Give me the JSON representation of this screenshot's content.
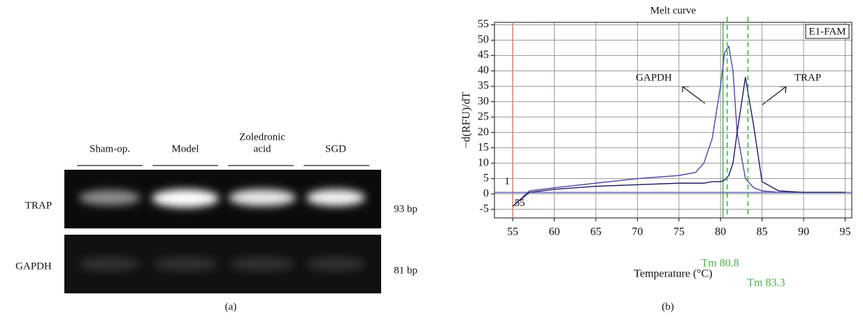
{
  "gel": {
    "lanes": [
      [
        "Sham-op."
      ],
      [
        "Model"
      ],
      [
        "Zoledronic",
        "acid"
      ],
      [
        "SGD"
      ]
    ],
    "rows": [
      "TRAP",
      "GAPDH"
    ],
    "sizes": [
      "93 bp",
      "81 bp"
    ],
    "caption": "(a)"
  },
  "chart_data": {
    "type": "line",
    "title": "Melt curve",
    "xlabel": "Temperature (°C)",
    "ylabel": "−d(RFU)/dT",
    "box_label": "E1-FAM",
    "caption": "(b)",
    "x": [
      55,
      57,
      60,
      65,
      70,
      75,
      77,
      78,
      79,
      80,
      80.5,
      81,
      81.5,
      82,
      83,
      84,
      85,
      87,
      90,
      95
    ],
    "series": [
      {
        "name": "GAPDH",
        "color": "#4a4aa8",
        "values": [
          -4,
          1,
          2,
          3.5,
          5,
          6,
          7,
          10,
          18,
          35,
          46,
          48,
          40,
          20,
          5,
          2,
          1,
          0.5,
          0.5,
          0.5
        ]
      },
      {
        "name": "TRAP",
        "color": "#1a1a60",
        "values": [
          -4,
          0.5,
          1.5,
          2.5,
          3,
          3.5,
          3.5,
          3.5,
          4,
          4,
          4.5,
          6,
          10,
          20,
          38,
          22,
          4,
          1,
          0.5,
          0.5
        ]
      }
    ],
    "xlim": [
      52.8,
      95.8
    ],
    "ylim": [
      -7.8,
      55.8
    ],
    "xticks": [
      55,
      60,
      65,
      70,
      75,
      80,
      85,
      90,
      95
    ],
    "yticks": [
      -5,
      0,
      5,
      10,
      15,
      20,
      25,
      30,
      35,
      40,
      45,
      50,
      55
    ],
    "grid": true,
    "start_line": 55,
    "threshold": 0.5,
    "threshold_label": "1",
    "start_label": "55",
    "cursor_line": 80.3,
    "tm_markers": [
      {
        "text": "Tm 80.8",
        "x": 80.8
      },
      {
        "text": "Tm 83.3",
        "x": 83.3
      }
    ]
  }
}
